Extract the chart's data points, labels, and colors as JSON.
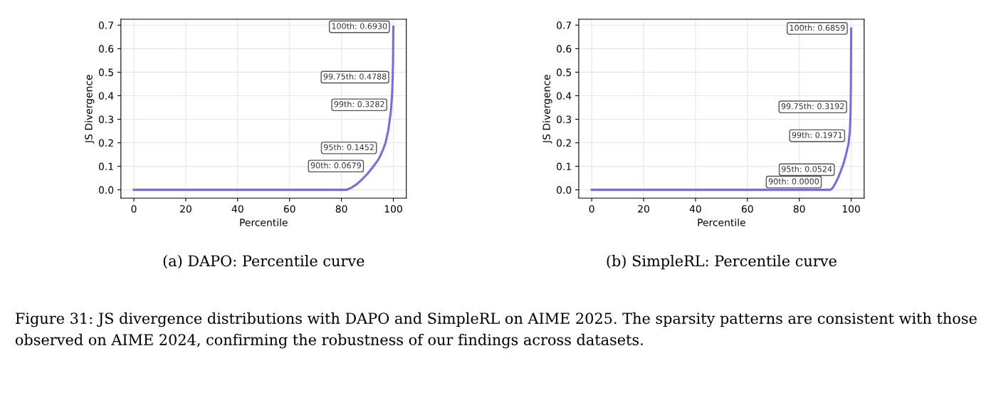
{
  "chart_data": [
    {
      "type": "line",
      "title": "(a) DAPO: Percentile curve",
      "xlabel": "Percentile",
      "ylabel": "JS Divergence",
      "x": [
        0,
        82,
        84,
        86,
        88,
        90,
        92,
        94,
        95,
        96,
        97,
        98,
        99,
        99.5,
        99.75,
        99.9,
        100
      ],
      "series": [
        {
          "color": "#7b68ee",
          "values": [
            0,
            0,
            0.01,
            0.025,
            0.045,
            0.0679,
            0.095,
            0.125,
            0.1452,
            0.17,
            0.2,
            0.25,
            0.3282,
            0.4,
            0.4788,
            0.55,
            0.693
          ]
        }
      ],
      "xlim": [
        -5,
        105
      ],
      "xticks": [
        0,
        20,
        40,
        60,
        80,
        100
      ],
      "ylim": [
        -0.035,
        0.725
      ],
      "yticks": [
        {
          "value": 0,
          "label": "0.0"
        },
        0.1,
        0.2,
        0.3,
        0.4,
        0.5,
        0.6,
        0.7
      ],
      "grid": true,
      "line_style": "solid",
      "annotations": [
        {
          "text": "90th: 0.0679",
          "x": 90,
          "y": 0.0679
        },
        {
          "text": "95th: 0.1452",
          "x": 95,
          "y": 0.1452
        },
        {
          "text": "99th: 0.3282",
          "x": 99,
          "y": 0.3282
        },
        {
          "text": "99.75th: 0.4788",
          "x": 99.75,
          "y": 0.4788
        },
        {
          "text": "100th: 0.6930",
          "x": 100,
          "y": 0.693
        }
      ]
    },
    {
      "type": "line",
      "title": "(b) SimpleRL: Percentile curve",
      "xlabel": "Percentile",
      "ylabel": "JS Divergence",
      "x": [
        0,
        90,
        92,
        93,
        94,
        95,
        96,
        97,
        98,
        99,
        99.5,
        99.75,
        99.9,
        100
      ],
      "series": [
        {
          "color": "#7b68ee",
          "values": [
            0,
            0,
            0,
            0.01,
            0.03,
            0.0524,
            0.08,
            0.11,
            0.15,
            0.1971,
            0.25,
            0.3192,
            0.45,
            0.6859
          ]
        }
      ],
      "xlim": [
        -5,
        105
      ],
      "xticks": [
        0,
        20,
        40,
        60,
        80,
        100
      ],
      "ylim": [
        -0.035,
        0.725
      ],
      "yticks": [
        {
          "value": 0,
          "label": "0.0"
        },
        0.1,
        0.2,
        0.3,
        0.4,
        0.5,
        0.6,
        0.7
      ],
      "grid": true,
      "line_style": "solid",
      "annotations": [
        {
          "text": "90th: 0.0000",
          "x": 90,
          "y": 0.0
        },
        {
          "text": "95th: 0.0524",
          "x": 95,
          "y": 0.0524
        },
        {
          "text": "99th: 0.1971",
          "x": 99,
          "y": 0.1971
        },
        {
          "text": "99.75th: 0.3192",
          "x": 99.75,
          "y": 0.3192
        },
        {
          "text": "100th: 0.6859",
          "x": 100,
          "y": 0.6859
        },
        "Figure 31: JS divergence distributions with DAPO and SimpleRL on AIME 2025. The sparsity patterns are consistent with those observed on AIME 2024, confirming the robustness of our findings across datasets."
      ]
    }
  ]
}
